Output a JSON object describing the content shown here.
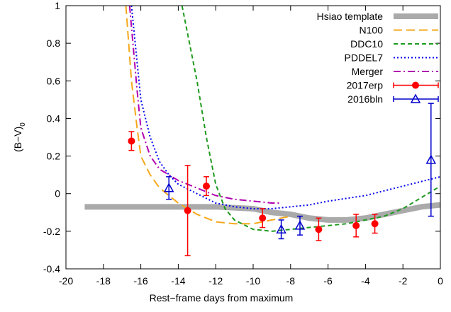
{
  "chart_data": {
    "type": "line",
    "xlabel": "Rest−frame days from maximum",
    "ylabel": {
      "text": "(B−V)",
      "subscript": "0"
    },
    "xlim": [
      -20,
      0
    ],
    "xticks": [
      -20,
      -18,
      -16,
      -14,
      -12,
      -10,
      -8,
      -6,
      -4,
      -2,
      0
    ],
    "ylim": [
      -0.4,
      1
    ],
    "yticks": [
      -0.4,
      -0.2,
      0,
      0.2,
      0.4,
      0.6,
      0.8,
      1
    ],
    "legend": "top-right",
    "series": [
      {
        "name": "Hsiao template",
        "color": "#aaaaaa",
        "style": "thick",
        "x": [
          -19,
          -12,
          -10,
          -9,
          -8,
          -7,
          -6,
          -5,
          -4,
          -3,
          -2,
          -1,
          0
        ],
        "values": [
          -0.07,
          -0.07,
          -0.08,
          -0.1,
          -0.11,
          -0.13,
          -0.14,
          -0.14,
          -0.13,
          -0.11,
          -0.09,
          -0.07,
          -0.06
        ]
      },
      {
        "name": "N100",
        "color": "#f5a81c",
        "style": "dashed",
        "x": [
          -16.8,
          -16.5,
          -16.2,
          -16,
          -15.5,
          -15,
          -14,
          -13,
          -12,
          -11,
          -10,
          -9,
          -8
        ],
        "values": [
          1.0,
          0.6,
          0.35,
          0.2,
          0.1,
          0.03,
          -0.05,
          -0.11,
          -0.15,
          -0.16,
          -0.16,
          -0.14,
          -0.12
        ]
      },
      {
        "name": "DDC10",
        "color": "#1f9a1f",
        "style": "short-dashed",
        "x": [
          -13.8,
          -13,
          -12.5,
          -12,
          -11.5,
          -11,
          -10,
          -9,
          -8,
          -7,
          -6,
          -5,
          -4,
          -3,
          -2,
          -1,
          0
        ],
        "values": [
          1.0,
          0.6,
          0.3,
          0.05,
          -0.08,
          -0.14,
          -0.19,
          -0.2,
          -0.19,
          -0.18,
          -0.17,
          -0.16,
          -0.14,
          -0.12,
          -0.08,
          -0.02,
          0.04
        ]
      },
      {
        "name": "PDDEL7",
        "color": "#0000ee",
        "style": "dotted",
        "x": [
          -16.5,
          -16,
          -15.5,
          -15,
          -14.5,
          -14,
          -13,
          -12,
          -11,
          -10,
          -9,
          -8,
          -7,
          -6,
          -4,
          -2,
          0
        ],
        "values": [
          1.0,
          0.5,
          0.3,
          0.17,
          0.1,
          0.05,
          0.0,
          -0.05,
          -0.07,
          -0.08,
          -0.08,
          -0.07,
          -0.06,
          -0.04,
          -0.01,
          0.04,
          0.09
        ]
      },
      {
        "name": "Merger",
        "color": "#b000b0",
        "style": "dash-dot",
        "x": [
          -16.6,
          -16.2,
          -16,
          -15.5,
          -15,
          -14,
          -13,
          -12,
          -11,
          -10,
          -9,
          -8.5
        ],
        "values": [
          1.0,
          0.55,
          0.35,
          0.2,
          0.13,
          0.07,
          0.03,
          -0.01,
          -0.03,
          -0.04,
          -0.05,
          -0.05
        ]
      },
      {
        "name": "2017erp",
        "color": "#ff0000",
        "style": "circle",
        "x": [
          -16.5,
          -13.5,
          -12.5,
          -9.5,
          -6.5,
          -4.5,
          -3.5
        ],
        "values": [
          0.28,
          -0.09,
          0.04,
          -0.13,
          -0.19,
          -0.17,
          -0.16
        ],
        "errors": [
          0.05,
          0.24,
          0.05,
          0.05,
          0.06,
          0.06,
          0.05
        ]
      },
      {
        "name": "2016bln",
        "color": "#0000cc",
        "style": "triangle",
        "x": [
          -14.5,
          -8.5,
          -7.5,
          -0.5
        ],
        "values": [
          0.03,
          -0.19,
          -0.17,
          0.18
        ],
        "errors": [
          0.06,
          0.05,
          0.05,
          0.3
        ]
      }
    ]
  }
}
